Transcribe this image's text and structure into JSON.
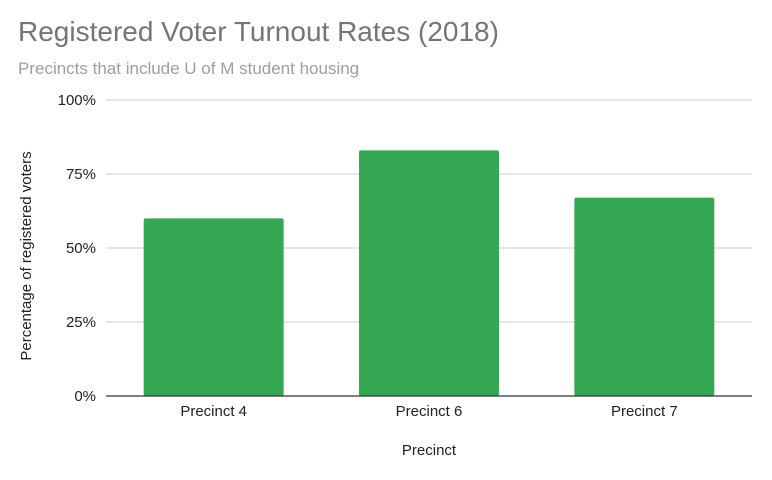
{
  "chart_data": {
    "type": "bar",
    "title": "Registered Voter Turnout Rates (2018)",
    "subtitle": "Precincts that include U of M student housing",
    "xlabel": "Precinct",
    "ylabel": "Percentage of registered voters",
    "categories": [
      "Precinct 4",
      "Precinct 6",
      "Precinct 7"
    ],
    "values": [
      0.6,
      0.83,
      0.67
    ],
    "ylim": [
      0,
      1
    ],
    "yticks": [
      {
        "value": 0,
        "label": "0%"
      },
      {
        "value": 0.25,
        "label": "25%"
      },
      {
        "value": 0.5,
        "label": "50%"
      },
      {
        "value": 0.75,
        "label": "75%"
      },
      {
        "value": 1,
        "label": "100%"
      }
    ],
    "bar_color": "#34a853",
    "grid": true,
    "legend": "none"
  }
}
